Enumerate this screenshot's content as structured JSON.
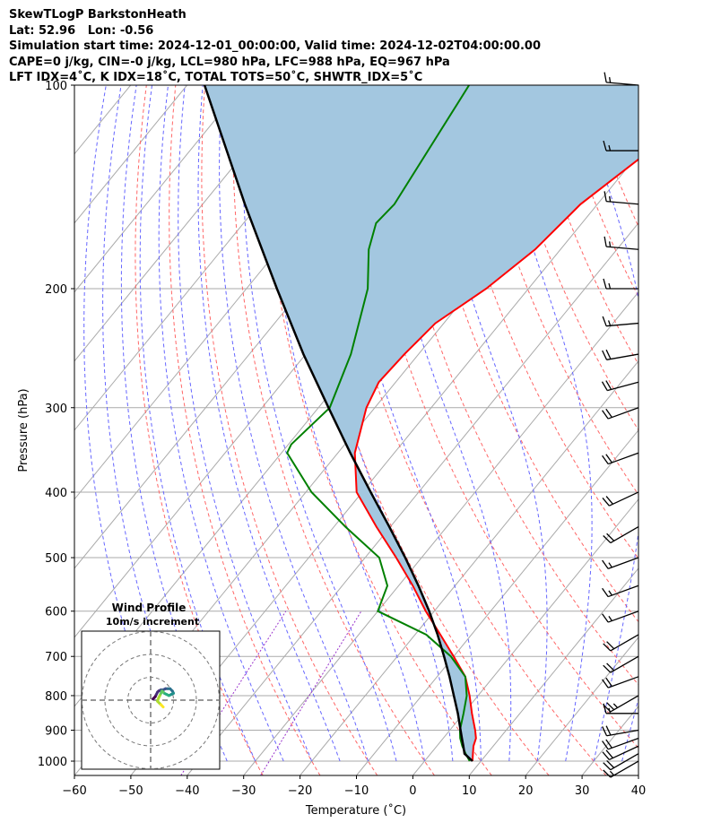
{
  "header": {
    "line1": "SkewTLogP BarkstonHeath",
    "line2": "Lat: 52.96   Lon: -0.56",
    "line3": "Simulation start time: 2024-12-01_00:00:00, Valid time: 2024-12-02T04:00:00.00",
    "line4": "CAPE=0 j/kg, CIN=-0 j/kg, LCL=980 hPa, LFC=988 hPa, EQ=967 hPa",
    "line5": "LFT IDX=4˚C, K IDX=18˚C, TOTAL TOTS=50˚C, SHWTR_IDX=5˚C"
  },
  "chart_data": {
    "type": "skewt-logp",
    "xlabel": "Temperature (˚C)",
    "ylabel": "Pressure (hPa)",
    "xlim": [
      -60,
      40
    ],
    "ylim": [
      1050,
      100
    ],
    "x_ticks": [
      "−60",
      "−50",
      "−40",
      "−30",
      "−20",
      "−10",
      "0",
      "10",
      "20",
      "30",
      "40"
    ],
    "x_tick_values": [
      -60,
      -50,
      -40,
      -30,
      -20,
      -10,
      0,
      10,
      20,
      30,
      40
    ],
    "y_ticks": [
      "100",
      "200",
      "300",
      "400",
      "500",
      "600",
      "700",
      "800",
      "900",
      "1000"
    ],
    "y_tick_values": [
      100,
      200,
      300,
      400,
      500,
      600,
      700,
      800,
      900,
      1000
    ],
    "grid": true,
    "series": [
      {
        "role": "temperature",
        "color": "#ff0000",
        "p": [
          1000,
          975,
          950,
          925,
          900,
          850,
          800,
          750,
          700,
          650,
          600,
          550,
          500,
          450,
          400,
          350,
          300,
          275,
          250,
          225,
          200,
          175,
          150,
          125,
          100
        ],
        "t": [
          8.5,
          7.5,
          6.5,
          5.8,
          4.5,
          1.5,
          -1.5,
          -5.0,
          -10.0,
          -15.5,
          -21.5,
          -27.5,
          -34.5,
          -42.5,
          -51.0,
          -57.0,
          -61.5,
          -63.0,
          -62.5,
          -61.5,
          -57.5,
          -54.5,
          -53.0,
          -48.5,
          -44.0
        ]
      },
      {
        "role": "dewpoint",
        "color": "#008000",
        "p": [
          1000,
          975,
          950,
          925,
          900,
          850,
          800,
          750,
          700,
          650,
          600,
          550,
          500,
          450,
          400,
          350,
          340,
          300,
          250,
          200,
          175,
          160,
          150,
          100
        ],
        "td": [
          8.0,
          6.2,
          4.5,
          3.0,
          1.8,
          0.0,
          -2.0,
          -5.0,
          -10.5,
          -18.0,
          -30.0,
          -32.0,
          -37.5,
          -48.0,
          -59.0,
          -69.0,
          -69.5,
          -68.0,
          -72.0,
          -78.5,
          -84.0,
          -86.5,
          -86.0,
          -90.0
        ]
      },
      {
        "role": "parcel",
        "color": "#000000",
        "p": [
          1000,
          975,
          950,
          925,
          900,
          850,
          800,
          750,
          700,
          650,
          600,
          550,
          500,
          450,
          400,
          350,
          300,
          250,
          200,
          150,
          100
        ],
        "t": [
          8.5,
          6.0,
          4.7,
          3.3,
          1.9,
          -1.0,
          -4.3,
          -7.8,
          -11.7,
          -16.0,
          -20.9,
          -26.5,
          -32.9,
          -40.2,
          -48.5,
          -57.8,
          -68.2,
          -80.4,
          -94.6,
          -112.5,
          -136.9
        ]
      }
    ],
    "cape_fill_color": "#a3c7e0",
    "wind_barbs": {
      "p": [
        1000,
        975,
        950,
        925,
        900,
        850,
        800,
        750,
        700,
        650,
        600,
        550,
        500,
        450,
        400,
        350,
        300,
        275,
        250,
        225,
        200,
        175,
        150,
        125,
        100
      ],
      "speed_kt": [
        15,
        20,
        20,
        20,
        20,
        15,
        25,
        20,
        20,
        20,
        15,
        15,
        15,
        20,
        20,
        20,
        20,
        20,
        20,
        15,
        15,
        15,
        15,
        15,
        15
      ],
      "dir_deg": [
        240,
        240,
        245,
        250,
        260,
        270,
        240,
        250,
        240,
        240,
        250,
        250,
        250,
        240,
        245,
        250,
        250,
        255,
        260,
        265,
        270,
        275,
        275,
        270,
        275
      ]
    },
    "hodograph": {
      "title": "Wind Profile",
      "subtitle": "10m/s increment",
      "rings_ms": [
        10,
        20,
        30
      ],
      "u": [
        1.0,
        1.5,
        2.0,
        2.5,
        3.0,
        3.5,
        4.5,
        5.5,
        6.5,
        7.5,
        8.5,
        9.5,
        10.0,
        9.0,
        8.0,
        7.0,
        6.0,
        5.5,
        5.0,
        4.5,
        4.0,
        3.5,
        3.0,
        4.5,
        5.5
      ],
      "v": [
        0.5,
        1.0,
        1.5,
        2.5,
        3.5,
        4.0,
        4.5,
        4.5,
        5.0,
        5.0,
        5.0,
        4.0,
        3.0,
        2.5,
        2.0,
        2.5,
        3.0,
        3.5,
        4.0,
        3.0,
        2.0,
        1.0,
        -0.5,
        -2.0,
        -3.0
      ]
    },
    "reference_lines": {
      "isotherm_color": "#aaaaaa",
      "dry_adiabat_color": "#ff6666",
      "moist_adiabat_color": "#6666ff",
      "mixing_ratio_color": "#9933cc"
    }
  }
}
